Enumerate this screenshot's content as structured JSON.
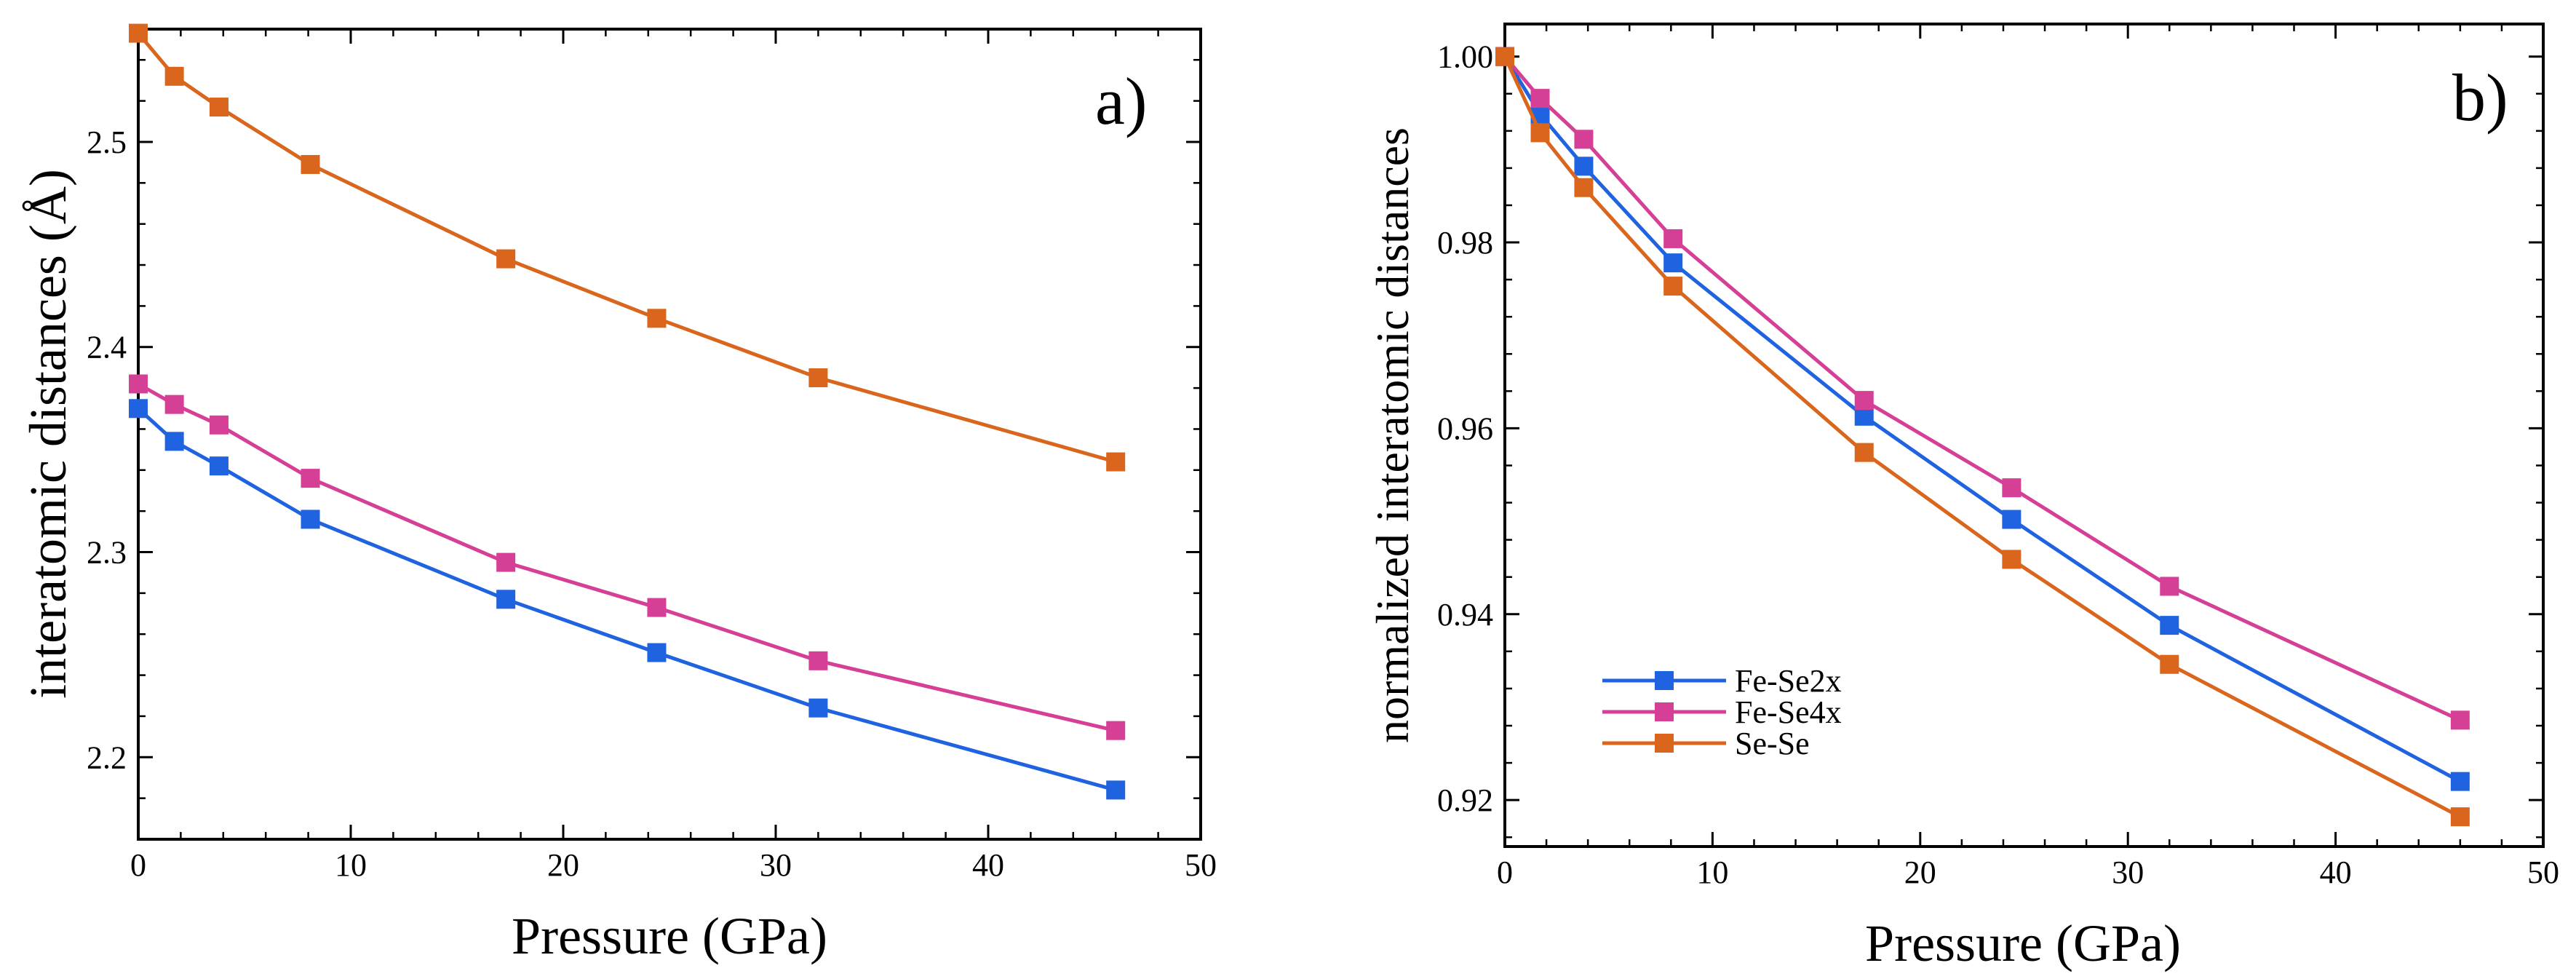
{
  "chart_data": [
    {
      "type": "line",
      "panel_label": "a)",
      "xlabel": "Pressure (GPa)",
      "ylabel": "interatomic distances (Å)",
      "xlim": [
        0,
        50
      ],
      "ylim": [
        2.16,
        2.555
      ],
      "x_ticks": [
        0,
        10,
        20,
        30,
        40,
        50
      ],
      "x_tick_labels": [
        "0",
        "10",
        "20",
        "30",
        "40",
        "50"
      ],
      "y_ticks": [
        2.2,
        2.3,
        2.4,
        2.5
      ],
      "y_tick_labels": [
        "2.2",
        "2.3",
        "2.4",
        "2.5"
      ],
      "x": [
        0,
        1.7,
        3.8,
        8.1,
        17.3,
        24.4,
        32.0,
        46.0
      ],
      "series": [
        {
          "name": "Fe-Se2x",
          "color": "#1f63e0",
          "values": [
            2.37,
            2.354,
            2.342,
            2.316,
            2.277,
            2.251,
            2.224,
            2.184
          ]
        },
        {
          "name": "Fe-Se4x",
          "color": "#d63f96",
          "values": [
            2.382,
            2.372,
            2.362,
            2.336,
            2.295,
            2.273,
            2.247,
            2.213
          ]
        },
        {
          "name": "Se-Se",
          "color": "#d9661c",
          "values": [
            2.553,
            2.532,
            2.517,
            2.489,
            2.443,
            2.414,
            2.385,
            2.344
          ]
        }
      ]
    },
    {
      "type": "line",
      "panel_label": "b)",
      "xlabel": "Pressure (GPa)",
      "ylabel": "normalized interatomic distances",
      "xlim": [
        0,
        50
      ],
      "ylim": [
        0.915,
        1.0035
      ],
      "x_ticks": [
        0,
        10,
        20,
        30,
        40,
        50
      ],
      "x_tick_labels": [
        "0",
        "10",
        "20",
        "30",
        "40",
        "50"
      ],
      "y_ticks": [
        0.92,
        0.94,
        0.96,
        0.98,
        1.0
      ],
      "y_tick_labels": [
        "0.92",
        "0.94",
        "0.96",
        "0.98",
        "1.00"
      ],
      "legend_position": "lower-left",
      "x": [
        0,
        1.7,
        3.8,
        8.1,
        17.3,
        24.4,
        32.0,
        46.0
      ],
      "series": [
        {
          "name": "Fe-Se2x",
          "color": "#1f63e0",
          "values": [
            1.0,
            0.9938,
            0.9882,
            0.9778,
            0.9613,
            0.9502,
            0.9388,
            0.922
          ]
        },
        {
          "name": "Fe-Se4x",
          "color": "#d63f96",
          "values": [
            1.0,
            0.9955,
            0.9911,
            0.9804,
            0.963,
            0.9536,
            0.943,
            0.9286
          ]
        },
        {
          "name": "Se-Se",
          "color": "#d9661c",
          "values": [
            1.0,
            0.9918,
            0.9859,
            0.9753,
            0.9574,
            0.9459,
            0.9346,
            0.9182
          ]
        }
      ]
    }
  ]
}
